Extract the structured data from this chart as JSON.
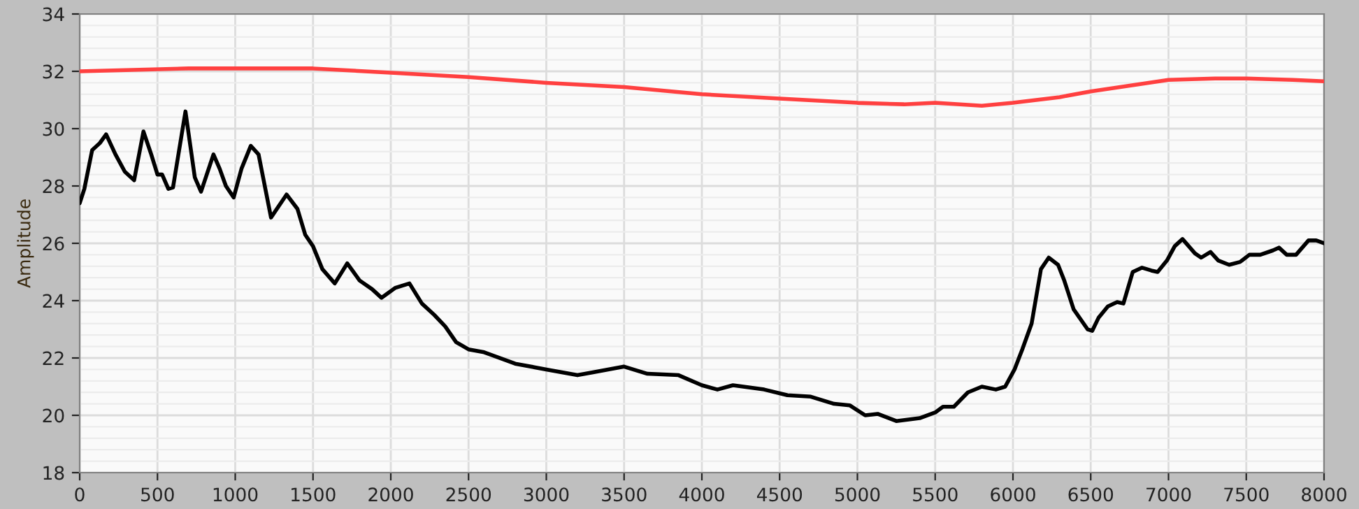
{
  "chart_data": {
    "type": "line",
    "ylabel": "Amplitude",
    "xlim": [
      0,
      8000
    ],
    "xticks": [
      0,
      500,
      1000,
      1500,
      2000,
      2500,
      3000,
      3500,
      4000,
      4500,
      5000,
      5500,
      6000,
      6500,
      7000,
      7500,
      8000
    ],
    "ylim": [
      18,
      34
    ],
    "yticks": [
      18,
      20,
      22,
      24,
      26,
      28,
      30,
      32,
      34
    ],
    "grid": true,
    "marker": "none",
    "line_style": "solid",
    "series": [
      {
        "color": "#ff4040",
        "x": [
          0,
          700,
          1500,
          2000,
          2500,
          3000,
          3500,
          4000,
          4500,
          5000,
          5300,
          5500,
          5800,
          6000,
          6300,
          6500,
          7000,
          7300,
          7500,
          7800,
          8000
        ],
        "values": [
          32.0,
          32.1,
          32.1,
          31.95,
          31.8,
          31.6,
          31.45,
          31.2,
          31.05,
          30.9,
          30.85,
          30.9,
          30.8,
          30.9,
          31.1,
          31.3,
          31.7,
          31.75,
          31.75,
          31.7,
          31.65
        ]
      },
      {
        "color": "#000000",
        "x": [
          0,
          30,
          80,
          130,
          170,
          230,
          290,
          350,
          410,
          460,
          500,
          530,
          570,
          600,
          680,
          740,
          780,
          860,
          900,
          940,
          990,
          1040,
          1100,
          1150,
          1230,
          1330,
          1400,
          1450,
          1500,
          1560,
          1640,
          1720,
          1800,
          1880,
          1940,
          2030,
          2120,
          2200,
          2280,
          2350,
          2420,
          2500,
          2600,
          2800,
          3000,
          3200,
          3300,
          3500,
          3650,
          3850,
          4000,
          4100,
          4200,
          4400,
          4550,
          4700,
          4850,
          4950,
          5050,
          5130,
          5250,
          5400,
          5500,
          5550,
          5620,
          5710,
          5800,
          5890,
          5950,
          6010,
          6060,
          6120,
          6180,
          6230,
          6290,
          6330,
          6390,
          6480,
          6510,
          6550,
          6610,
          6670,
          6710,
          6770,
          6830,
          6890,
          6930,
          6990,
          7040,
          7090,
          7170,
          7210,
          7270,
          7320,
          7390,
          7460,
          7520,
          7590,
          7670,
          7710,
          7760,
          7820,
          7900,
          7950,
          8000
        ],
        "values": [
          27.4,
          27.9,
          29.25,
          29.5,
          29.8,
          29.1,
          28.5,
          28.2,
          29.9,
          29.1,
          28.4,
          28.4,
          27.9,
          27.95,
          30.6,
          28.3,
          27.8,
          29.1,
          28.6,
          28.0,
          27.6,
          28.6,
          29.4,
          29.1,
          26.9,
          27.7,
          27.2,
          26.3,
          25.9,
          25.1,
          24.6,
          25.3,
          24.7,
          24.4,
          24.1,
          24.45,
          24.6,
          23.9,
          23.5,
          23.1,
          22.55,
          22.3,
          22.2,
          21.8,
          21.6,
          21.4,
          21.5,
          21.7,
          21.45,
          21.4,
          21.05,
          20.9,
          21.05,
          20.9,
          20.7,
          20.65,
          20.4,
          20.35,
          20.0,
          20.05,
          19.8,
          19.9,
          20.1,
          20.3,
          20.3,
          20.8,
          21.0,
          20.9,
          21.0,
          21.6,
          22.3,
          23.2,
          25.1,
          25.5,
          25.25,
          24.7,
          23.7,
          23.0,
          22.95,
          23.4,
          23.8,
          23.95,
          23.9,
          25.0,
          25.15,
          25.05,
          25.0,
          25.4,
          25.9,
          26.15,
          25.65,
          25.5,
          25.7,
          25.4,
          25.25,
          25.35,
          25.6,
          25.6,
          25.75,
          25.85,
          25.6,
          25.6,
          26.1,
          26.1,
          26.0
        ]
      }
    ]
  }
}
